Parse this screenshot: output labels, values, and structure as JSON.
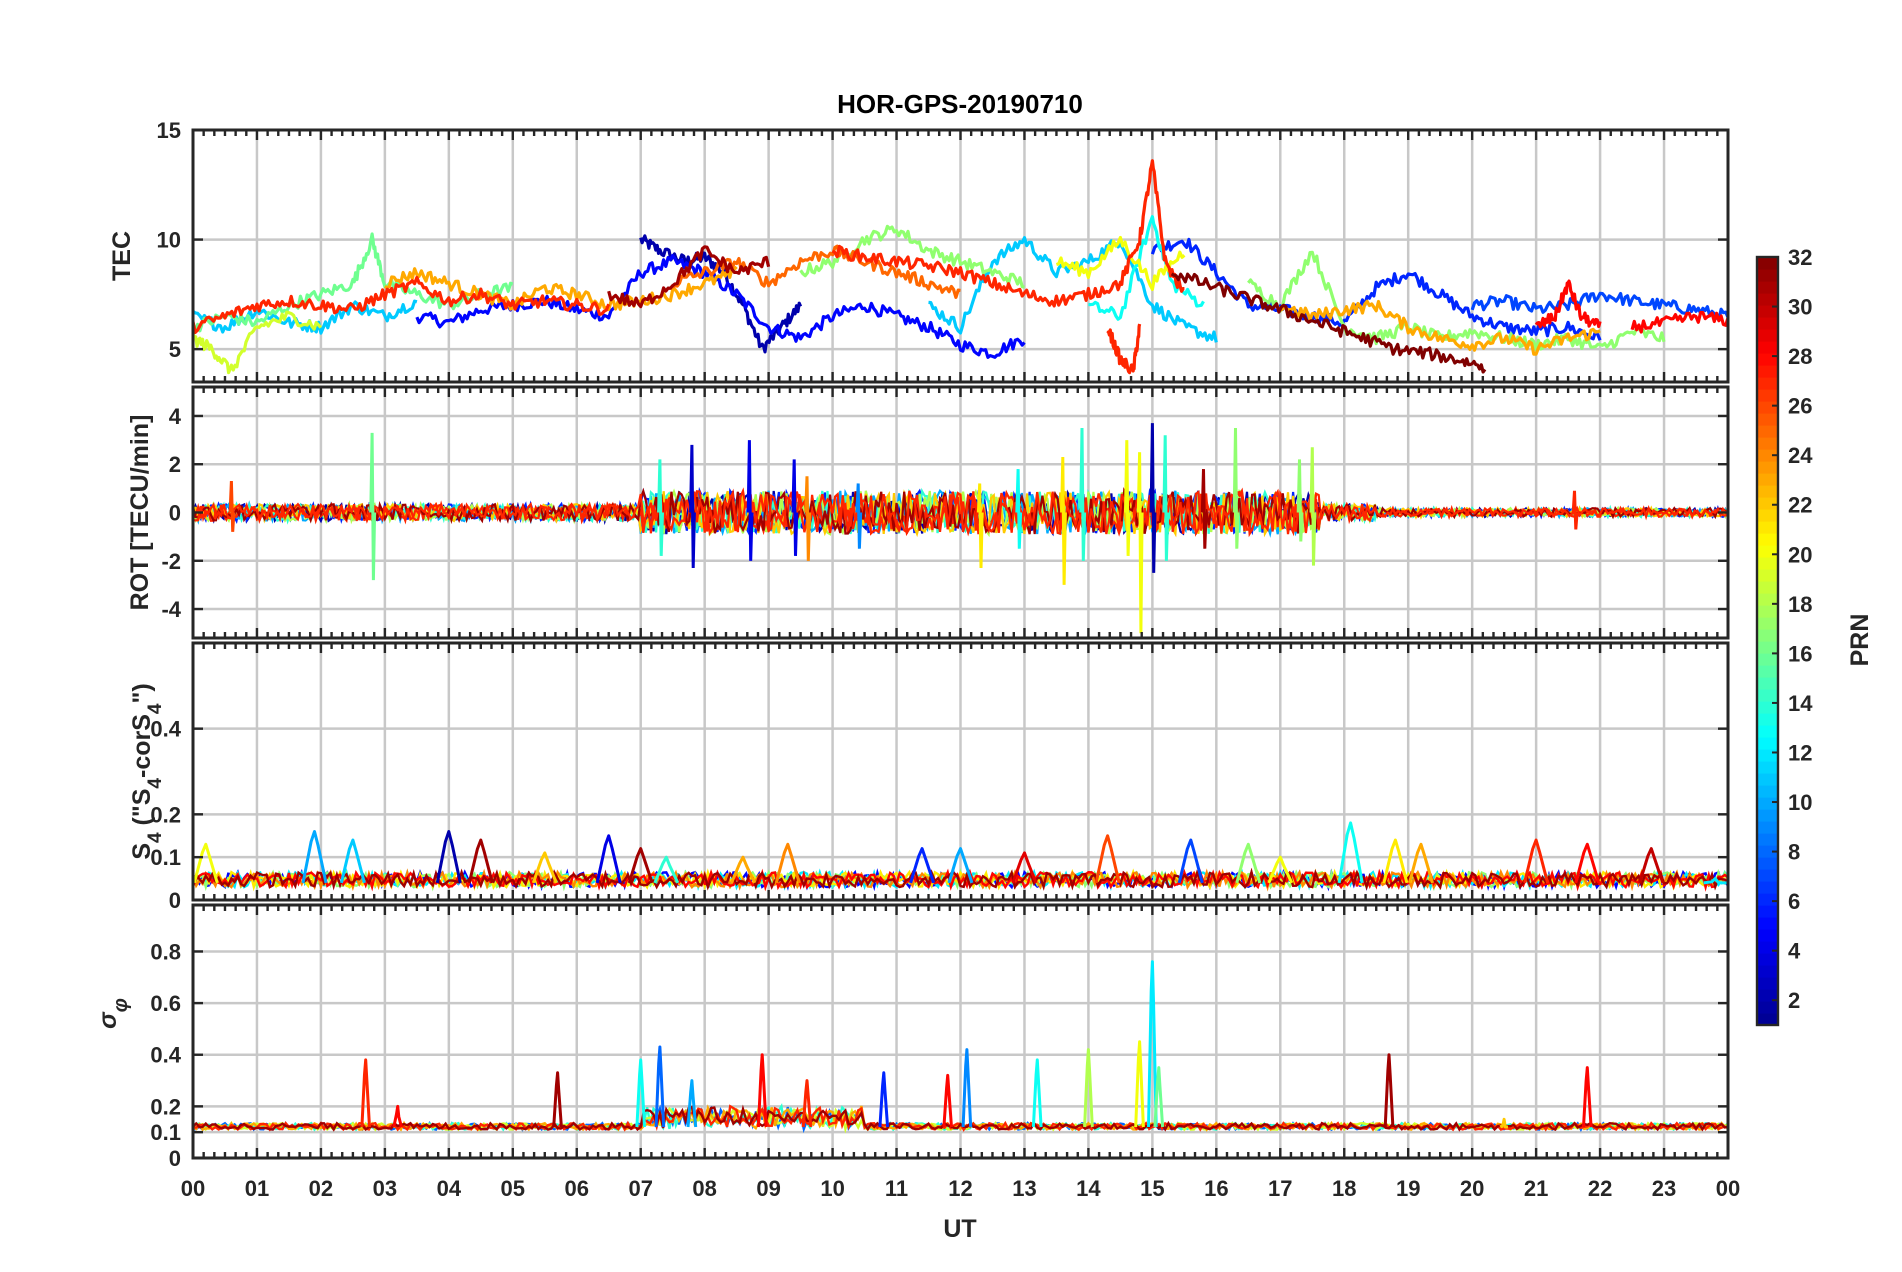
{
  "chart_data": {
    "type": "line",
    "title": "HOR-GPS-20190710",
    "xlabel": "UT",
    "x_tick_labels": [
      "00",
      "01",
      "02",
      "03",
      "04",
      "05",
      "06",
      "07",
      "08",
      "09",
      "10",
      "11",
      "12",
      "13",
      "14",
      "15",
      "16",
      "17",
      "18",
      "19",
      "20",
      "21",
      "22",
      "23",
      "00"
    ],
    "xlim": [
      0,
      24
    ],
    "grid": true,
    "colorbar": {
      "label": "PRN",
      "range": [
        1,
        32
      ],
      "ticks": [
        "2",
        "4",
        "6",
        "8",
        "10",
        "12",
        "14",
        "16",
        "18",
        "20",
        "22",
        "24",
        "26",
        "28",
        "30",
        "32"
      ],
      "colormap": "jet",
      "stops": [
        "#00008f",
        "#0000ff",
        "#0080ff",
        "#00ffff",
        "#80ff80",
        "#ffff00",
        "#ff8000",
        "#ff0000",
        "#800000"
      ]
    },
    "panels": [
      {
        "ylabel": "TEC",
        "ylim": [
          3.5,
          15
        ],
        "yticks": [
          "5",
          "10",
          "15"
        ],
        "series": [
          {
            "prn": 2,
            "x": [
              7.0,
              7.3,
              7.7,
              8.0,
              8.3,
              8.6,
              8.9,
              9.2,
              9.5
            ],
            "y": [
              10.0,
              9.5,
              9.0,
              9.2,
              8.5,
              7.0,
              5.0,
              6.0,
              7.0
            ]
          },
          {
            "prn": 5,
            "x": [
              3.5,
              4.0,
              4.5,
              5.0,
              5.5,
              6.0,
              6.5,
              7.0,
              7.5,
              8.0,
              8.5,
              9.0,
              9.5,
              10.0,
              10.5,
              11.0,
              11.5,
              12.0,
              12.5,
              13.0
            ],
            "y": [
              6.5,
              6.2,
              6.8,
              7.0,
              7.2,
              6.8,
              6.5,
              8.5,
              9.0,
              8.5,
              7.5,
              6.0,
              5.5,
              6.5,
              7.0,
              6.5,
              6.0,
              5.2,
              4.8,
              5.5
            ]
          },
          {
            "prn": 6,
            "x": [
              15.0,
              15.5,
              16.0,
              16.5,
              17.0,
              17.5,
              18.0,
              18.5,
              19.0,
              19.5,
              20.0,
              20.5,
              21.0,
              21.5,
              22.0
            ],
            "y": [
              9.5,
              10.0,
              8.5,
              7.0,
              6.8,
              6.5,
              6.2,
              7.8,
              8.5,
              7.5,
              6.5,
              6.0,
              5.8,
              6.0,
              5.5
            ]
          },
          {
            "prn": 7,
            "x": [
              20.0,
              20.5,
              21.0,
              21.5,
              22.0,
              22.5,
              23.0,
              23.5,
              24.0
            ],
            "y": [
              7.0,
              7.2,
              6.8,
              7.0,
              7.5,
              7.2,
              7.0,
              6.8,
              6.5
            ]
          },
          {
            "prn": 11,
            "x": [
              0.0,
              0.5,
              1.0,
              1.5,
              2.0,
              2.5,
              3.0,
              3.5
            ],
            "y": [
              6.5,
              6.0,
              6.8,
              6.2,
              6.0,
              7.0,
              6.5,
              7.2
            ]
          },
          {
            "prn": 11,
            "x": [
              11.5,
              12.0,
              12.5,
              13.0,
              13.5,
              14.0,
              14.5,
              15.0,
              15.5,
              16.0
            ],
            "y": [
              7.0,
              6.0,
              9.0,
              10.0,
              8.5,
              9.0,
              10.0,
              7.0,
              6.0,
              5.5
            ]
          },
          {
            "prn": 13,
            "x": [
              14.0,
              14.5,
              15.0,
              15.3,
              15.8
            ],
            "y": [
              7.0,
              6.5,
              11.0,
              8.0,
              7.0
            ]
          },
          {
            "prn": 16,
            "x": [
              0.0,
              0.5,
              1.0,
              1.5,
              2.0,
              2.5,
              2.8,
              3.0,
              3.5,
              4.0,
              4.5,
              5.0
            ],
            "y": [
              6.0,
              6.5,
              6.2,
              7.0,
              7.5,
              8.0,
              10.0,
              8.0,
              7.5,
              7.0,
              7.5,
              7.8
            ]
          },
          {
            "prn": 17,
            "x": [
              9.5,
              10.0,
              10.5,
              11.0,
              11.5,
              12.0,
              12.5,
              13.0
            ],
            "y": [
              8.5,
              9.0,
              10.0,
              10.5,
              9.5,
              9.0,
              8.5,
              8.0
            ]
          },
          {
            "prn": 17,
            "x": [
              16.5,
              17.0,
              17.5,
              18.0,
              18.5,
              19.0,
              19.5,
              20.0,
              20.5,
              21.0,
              21.5,
              22.0,
              22.5,
              23.0
            ],
            "y": [
              8.0,
              7.0,
              9.5,
              6.0,
              5.5,
              6.0,
              5.5,
              5.8,
              5.5,
              5.2,
              5.5,
              5.0,
              5.8,
              5.5
            ]
          },
          {
            "prn": 19,
            "x": [
              0.0,
              0.3,
              0.6,
              1.0,
              1.5,
              2.0
            ],
            "y": [
              5.5,
              5.0,
              4.0,
              6.0,
              6.5,
              6.0
            ]
          },
          {
            "prn": 20,
            "x": [
              13.5,
              14.0,
              14.5,
              15.0,
              15.5
            ],
            "y": [
              9.0,
              8.5,
              10.0,
              8.0,
              9.5
            ]
          },
          {
            "prn": 23,
            "x": [
              3.0,
              3.5,
              4.0,
              4.5,
              5.0,
              5.5,
              6.0,
              6.5,
              7.0,
              7.5,
              8.0,
              8.5
            ],
            "y": [
              8.0,
              8.5,
              8.0,
              7.5,
              7.0,
              7.8,
              7.5,
              7.0,
              7.2,
              7.5,
              8.0,
              8.5
            ]
          },
          {
            "prn": 23,
            "x": [
              17.0,
              17.5,
              18.0,
              18.5,
              19.0,
              19.5,
              20.0,
              20.5,
              21.0,
              21.5,
              22.0
            ],
            "y": [
              7.0,
              6.5,
              6.8,
              7.0,
              6.0,
              5.5,
              5.2,
              5.5,
              5.0,
              5.5,
              5.8
            ]
          },
          {
            "prn": 25,
            "x": [
              7.5,
              8.0,
              8.5,
              9.0,
              9.5,
              10.0,
              10.5,
              11.0,
              11.5,
              12.0
            ],
            "y": [
              8.0,
              8.5,
              9.0,
              8.0,
              9.0,
              9.5,
              9.0,
              8.5,
              8.0,
              7.5
            ]
          },
          {
            "prn": 27,
            "x": [
              0.0,
              0.5,
              1.0,
              1.5,
              2.0,
              2.5,
              3.0,
              3.5,
              4.0,
              4.5,
              5.0,
              5.5,
              6.0,
              6.5
            ],
            "y": [
              6.0,
              6.5,
              7.0,
              7.2,
              7.0,
              6.8,
              7.5,
              8.0,
              7.2,
              7.5,
              7.0,
              7.2,
              7.0,
              6.8
            ]
          },
          {
            "prn": 27,
            "x": [
              10.0,
              10.5,
              11.0,
              11.5,
              12.0,
              12.5,
              13.0,
              13.5,
              14.0,
              14.5,
              14.8,
              15.0,
              15.2,
              15.5
            ],
            "y": [
              9.5,
              9.2,
              9.0,
              8.8,
              8.5,
              8.0,
              7.5,
              7.2,
              7.5,
              8.0,
              10.0,
              13.5,
              9.0,
              7.5
            ]
          },
          {
            "prn": 27,
            "x": [
              14.3,
              14.5,
              14.7,
              14.8
            ],
            "y": [
              6.0,
              4.5,
              4.0,
              6.0
            ]
          },
          {
            "prn": 28,
            "x": [
              21.0,
              21.3,
              21.5,
              21.7,
              22.0
            ],
            "y": [
              6.0,
              6.5,
              8.0,
              6.5,
              6.0
            ]
          },
          {
            "prn": 28,
            "x": [
              22.5,
              23.0,
              23.5,
              24.0
            ],
            "y": [
              6.0,
              6.2,
              6.5,
              6.3
            ]
          },
          {
            "prn": 31,
            "x": [
              6.5,
              7.0,
              7.5,
              8.0,
              8.5,
              9.0
            ],
            "y": [
              7.5,
              7.0,
              8.0,
              9.5,
              8.5,
              9.0
            ]
          },
          {
            "prn": 32,
            "x": [
              15.3,
              15.8,
              16.3,
              16.8,
              17.3,
              17.8,
              18.3,
              18.8,
              19.3,
              19.8,
              20.2
            ],
            "y": [
              8.5,
              8.0,
              7.5,
              7.0,
              6.5,
              6.0,
              5.5,
              5.0,
              4.8,
              4.5,
              4.2
            ]
          }
        ]
      },
      {
        "ylabel": "ROT [TECU/min]",
        "ylim": [
          -5.2,
          5.2
        ],
        "yticks": [
          "4",
          "2",
          "0",
          "-2",
          "-4"
        ],
        "spikes": [
          {
            "prn": 16,
            "x": 2.8,
            "ymin": -2.8,
            "ymax": 3.3
          },
          {
            "prn": 26,
            "x": 0.6,
            "ymin": -0.8,
            "ymax": 1.3
          },
          {
            "prn": 14,
            "x": 7.3,
            "ymin": -1.8,
            "ymax": 2.2
          },
          {
            "prn": 3,
            "x": 7.8,
            "ymin": -2.3,
            "ymax": 2.8
          },
          {
            "prn": 4,
            "x": 8.7,
            "ymin": -2.0,
            "ymax": 3.0
          },
          {
            "prn": 4,
            "x": 9.4,
            "ymin": -1.8,
            "ymax": 2.2
          },
          {
            "prn": 24,
            "x": 9.6,
            "ymin": -2.0,
            "ymax": 1.5
          },
          {
            "prn": 9,
            "x": 10.4,
            "ymin": -1.5,
            "ymax": 1.2
          },
          {
            "prn": 21,
            "x": 12.3,
            "ymin": -2.3,
            "ymax": 1.2
          },
          {
            "prn": 13,
            "x": 12.9,
            "ymin": -1.5,
            "ymax": 1.8
          },
          {
            "prn": 21,
            "x": 13.6,
            "ymin": -3.0,
            "ymax": 2.3
          },
          {
            "prn": 14,
            "x": 13.9,
            "ymin": -2.0,
            "ymax": 3.5
          },
          {
            "prn": 20,
            "x": 14.6,
            "ymin": -1.8,
            "ymax": 3.0
          },
          {
            "prn": 20,
            "x": 14.8,
            "ymin": -5.0,
            "ymax": 2.5
          },
          {
            "prn": 2,
            "x": 15.0,
            "ymin": -2.5,
            "ymax": 3.7
          },
          {
            "prn": 14,
            "x": 15.2,
            "ymin": -2.0,
            "ymax": 3.2
          },
          {
            "prn": 31,
            "x": 15.8,
            "ymin": -1.5,
            "ymax": 1.8
          },
          {
            "prn": 17,
            "x": 16.3,
            "ymin": -1.5,
            "ymax": 3.5
          },
          {
            "prn": 17,
            "x": 17.3,
            "ymin": -1.2,
            "ymax": 2.2
          },
          {
            "prn": 18,
            "x": 17.5,
            "ymin": -2.2,
            "ymax": 2.7
          },
          {
            "prn": 27,
            "x": 21.6,
            "ymin": -0.7,
            "ymax": 0.9
          }
        ]
      },
      {
        "ylabel": "S4 (\"S4-corS4\")",
        "ylim": [
          0,
          0.6
        ],
        "yticks": [
          "0.4",
          "0.2",
          "0.1",
          "0"
        ],
        "peaks": [
          {
            "prn": 20,
            "x": 0.2,
            "y": 0.13
          },
          {
            "prn": 10,
            "x": 1.9,
            "y": 0.16
          },
          {
            "prn": 11,
            "x": 2.5,
            "y": 0.14
          },
          {
            "prn": 2,
            "x": 4.0,
            "y": 0.16
          },
          {
            "prn": 31,
            "x": 4.5,
            "y": 0.14
          },
          {
            "prn": 22,
            "x": 5.5,
            "y": 0.11
          },
          {
            "prn": 4,
            "x": 6.5,
            "y": 0.15
          },
          {
            "prn": 31,
            "x": 7.0,
            "y": 0.12
          },
          {
            "prn": 14,
            "x": 7.4,
            "y": 0.1
          },
          {
            "prn": 23,
            "x": 8.6,
            "y": 0.1
          },
          {
            "prn": 24,
            "x": 9.3,
            "y": 0.13
          },
          {
            "prn": 6,
            "x": 11.4,
            "y": 0.12
          },
          {
            "prn": 10,
            "x": 12.0,
            "y": 0.12
          },
          {
            "prn": 29,
            "x": 13.0,
            "y": 0.11
          },
          {
            "prn": 26,
            "x": 14.3,
            "y": 0.15
          },
          {
            "prn": 7,
            "x": 15.6,
            "y": 0.14
          },
          {
            "prn": 17,
            "x": 16.5,
            "y": 0.13
          },
          {
            "prn": 20,
            "x": 17.0,
            "y": 0.1
          },
          {
            "prn": 13,
            "x": 18.1,
            "y": 0.18
          },
          {
            "prn": 21,
            "x": 18.8,
            "y": 0.14
          },
          {
            "prn": 23,
            "x": 19.2,
            "y": 0.13
          },
          {
            "prn": 27,
            "x": 21.0,
            "y": 0.14
          },
          {
            "prn": 28,
            "x": 21.8,
            "y": 0.13
          },
          {
            "prn": 30,
            "x": 22.8,
            "y": 0.12
          },
          {
            "prn": 12,
            "x": 23.8,
            "y": 0.05
          }
        ]
      },
      {
        "ylabel": "σφ",
        "ylim": [
          0,
          0.98
        ],
        "yticks": [
          "0.8",
          "0.6",
          "0.4",
          "0.2",
          "0.1",
          "0"
        ],
        "peaks": [
          {
            "prn": 27,
            "x": 2.7,
            "y": 0.38
          },
          {
            "prn": 28,
            "x": 3.2,
            "y": 0.2
          },
          {
            "prn": 31,
            "x": 5.7,
            "y": 0.33
          },
          {
            "prn": 13,
            "x": 7.0,
            "y": 0.38
          },
          {
            "prn": 8,
            "x": 7.3,
            "y": 0.43
          },
          {
            "prn": 10,
            "x": 7.8,
            "y": 0.3
          },
          {
            "prn": 28,
            "x": 8.9,
            "y": 0.4
          },
          {
            "prn": 27,
            "x": 9.6,
            "y": 0.3
          },
          {
            "prn": 6,
            "x": 10.8,
            "y": 0.33
          },
          {
            "prn": 28,
            "x": 11.8,
            "y": 0.32
          },
          {
            "prn": 9,
            "x": 12.1,
            "y": 0.42
          },
          {
            "prn": 13,
            "x": 13.2,
            "y": 0.38
          },
          {
            "prn": 18,
            "x": 14.0,
            "y": 0.42
          },
          {
            "prn": 20,
            "x": 14.8,
            "y": 0.45
          },
          {
            "prn": 12,
            "x": 15.0,
            "y": 0.76
          },
          {
            "prn": 16,
            "x": 15.1,
            "y": 0.35
          },
          {
            "prn": 31,
            "x": 18.7,
            "y": 0.4
          },
          {
            "prn": 28,
            "x": 21.8,
            "y": 0.35
          },
          {
            "prn": 22,
            "x": 20.5,
            "y": 0.15
          }
        ]
      }
    ]
  }
}
